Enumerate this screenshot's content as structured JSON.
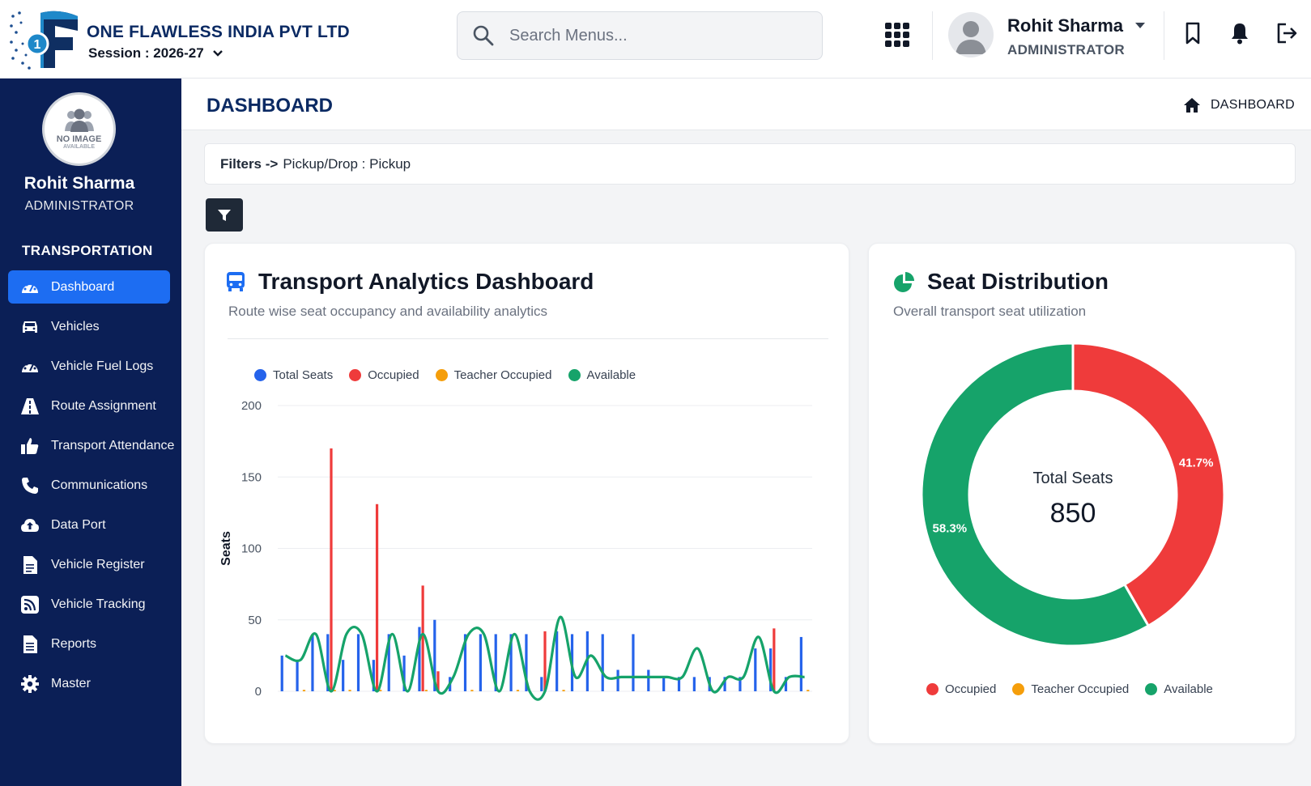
{
  "header": {
    "company_name": "ONE FLAWLESS INDIA PVT LTD",
    "session_label": "Session : 2026-27",
    "search_placeholder": "Search Menus...",
    "user_name": "Rohit Sharma",
    "user_role": "ADMINISTRATOR",
    "icons": [
      "grid-apps-icon",
      "bookmark-icon",
      "bell-icon",
      "logout-icon"
    ]
  },
  "sidebar": {
    "profile_image_text_1": "NO IMAGE",
    "profile_image_text_2": "AVAILABLE",
    "user_name": "Rohit Sharma",
    "user_role": "ADMINISTRATOR",
    "section_title": "TRANSPORTATION",
    "items": [
      {
        "label": "Dashboard",
        "icon": "dashboard-icon",
        "active": true
      },
      {
        "label": "Vehicles",
        "icon": "car-icon",
        "active": false
      },
      {
        "label": "Vehicle Fuel Logs",
        "icon": "gauge-icon",
        "active": false
      },
      {
        "label": "Route Assignment",
        "icon": "road-icon",
        "active": false
      },
      {
        "label": "Transport Attendance",
        "icon": "thumbs-up-icon",
        "active": false
      },
      {
        "label": "Communications",
        "icon": "phone-icon",
        "active": false
      },
      {
        "label": "Data Port",
        "icon": "cloud-upload-icon",
        "active": false
      },
      {
        "label": "Vehicle Register",
        "icon": "document-icon",
        "active": false
      },
      {
        "label": "Vehicle Tracking",
        "icon": "rss-icon",
        "active": false
      },
      {
        "label": "Reports",
        "icon": "report-icon",
        "active": false
      },
      {
        "label": "Master",
        "icon": "gear-icon",
        "active": false
      }
    ]
  },
  "page": {
    "title": "DASHBOARD",
    "breadcrumb": "DASHBOARD",
    "filters_label": "Filters ->",
    "filters_value": "Pickup/Drop : Pickup"
  },
  "analytics_card": {
    "title": "Transport Analytics Dashboard",
    "subtitle": "Route wise seat occupancy and availability analytics"
  },
  "seat_card": {
    "title": "Seat Distribution",
    "subtitle": "Overall transport seat utilization",
    "center_label": "Total Seats",
    "center_value": "850"
  },
  "colors": {
    "total": "#2563eb",
    "occupied": "#ef3b3b",
    "teacher": "#f59e0b",
    "available": "#16a36a"
  },
  "chart_data": [
    {
      "type": "bar",
      "ylabel": "Seats",
      "ylim": [
        0,
        200
      ],
      "yticks": [
        "0",
        "50",
        "100",
        "150",
        "200"
      ],
      "legend": [
        "Total Seats",
        "Occupied",
        "Teacher Occupied",
        "Available"
      ],
      "categories_count": 35,
      "series": [
        {
          "name": "Total Seats",
          "values": [
            25,
            22,
            40,
            40,
            22,
            40,
            22,
            40,
            25,
            45,
            50,
            10,
            40,
            40,
            40,
            40,
            40,
            10,
            42,
            40,
            42,
            40,
            15,
            40,
            15,
            10,
            10,
            10,
            10,
            10,
            10,
            30,
            30,
            10,
            38
          ]
        },
        {
          "name": "Occupied",
          "values": [
            0,
            0,
            0,
            170,
            0,
            0,
            131,
            0,
            0,
            74,
            14,
            0,
            0,
            0,
            0,
            0,
            0,
            42,
            0,
            0,
            0,
            0,
            0,
            0,
            0,
            0,
            0,
            0,
            0,
            0,
            0,
            0,
            44,
            0,
            0
          ]
        },
        {
          "name": "Teacher Occupied",
          "values": [
            0,
            1,
            0,
            1,
            1,
            0,
            1,
            0,
            0,
            1,
            0,
            0,
            1,
            0,
            0,
            1,
            0,
            0,
            1,
            0,
            0,
            0,
            0,
            0,
            0,
            0,
            0,
            0,
            0,
            0,
            0,
            0,
            0,
            0,
            1
          ]
        },
        {
          "name": "Available",
          "values": [
            25,
            22,
            40,
            0,
            40,
            40,
            0,
            40,
            0,
            40,
            0,
            10,
            40,
            40,
            0,
            40,
            0,
            0,
            52,
            10,
            25,
            10,
            10,
            10,
            10,
            10,
            10,
            30,
            0,
            10,
            10,
            38,
            0,
            10,
            10
          ]
        }
      ]
    },
    {
      "type": "pie",
      "labels": [
        "Occupied",
        "Teacher Occupied",
        "Available"
      ],
      "values": [
        41.7,
        0,
        58.3
      ],
      "data_labels": [
        "41.7%",
        "",
        "58.3%"
      ],
      "legend": [
        "Occupied",
        "Teacher Occupied",
        "Available"
      ],
      "legend_position": "bottom"
    }
  ]
}
